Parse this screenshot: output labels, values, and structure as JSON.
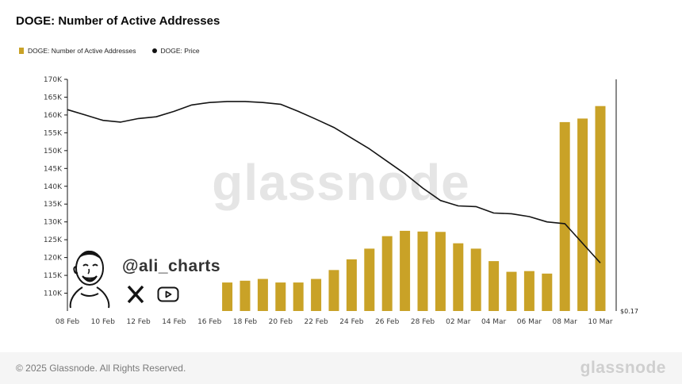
{
  "title": "DOGE: Number of Active Addresses",
  "legend": [
    {
      "label": "DOGE: Number of Active Addresses",
      "color": "#C9A227",
      "marker": "bar"
    },
    {
      "label": "DOGE: Price",
      "color": "#111111",
      "marker": "dot"
    }
  ],
  "watermark": "glassnode",
  "annotation": {
    "handle": "@ali_charts",
    "icons": [
      "x-logo-icon",
      "youtube-icon"
    ]
  },
  "price_label": "$0.17",
  "footer": {
    "copyright": "© 2025 Glassnode. All Rights Reserved.",
    "brand": "glassnode"
  },
  "colors": {
    "bar": "#C9A227",
    "line": "#141414",
    "axis": "#141414",
    "tick_text": "#3a3a3a",
    "watermark": "#e5e5e5",
    "footer_bg": "#f5f5f5"
  },
  "chart_data": {
    "type": "bar+line",
    "title": "DOGE: Number of Active Addresses",
    "ylabel": "Active Addresses",
    "ylim": [
      105000,
      170000
    ],
    "yticks": [
      110000,
      115000,
      120000,
      125000,
      130000,
      135000,
      140000,
      145000,
      150000,
      155000,
      160000,
      165000,
      170000
    ],
    "xticks": [
      "08 Feb",
      "10 Feb",
      "12 Feb",
      "14 Feb",
      "16 Feb",
      "18 Feb",
      "20 Feb",
      "22 Feb",
      "24 Feb",
      "26 Feb",
      "28 Feb",
      "02 Mar",
      "04 Mar",
      "06 Mar",
      "08 Mar",
      "10 Mar"
    ],
    "xtick_day_step": 2,
    "days_max": 30,
    "grid": false,
    "legend_position": "top-left",
    "series": [
      {
        "name": "DOGE: Number of Active Addresses",
        "kind": "bar",
        "x_index": [
          9,
          10,
          11,
          12,
          13,
          14,
          15,
          16,
          17,
          18,
          19,
          20,
          21,
          22,
          23,
          24,
          25,
          26,
          27,
          28,
          29,
          30
        ],
        "values": [
          113000,
          113500,
          114000,
          113000,
          113000,
          114000,
          116500,
          119500,
          122500,
          126000,
          127500,
          127300,
          127200,
          124000,
          122500,
          119000,
          116000,
          116200,
          115500,
          158000,
          159000,
          162500
        ]
      },
      {
        "name": "DOGE: Price",
        "kind": "line",
        "x_index": [
          0,
          1,
          2,
          3,
          4,
          5,
          6,
          7,
          8,
          9,
          10,
          11,
          12,
          13,
          14,
          15,
          16,
          17,
          18,
          19,
          20,
          21,
          22,
          23,
          24,
          25,
          26,
          27,
          28,
          29,
          30
        ],
        "values": [
          161500,
          160000,
          158500,
          158000,
          159000,
          159500,
          161000,
          162800,
          163500,
          163800,
          163800,
          163500,
          163000,
          161000,
          158800,
          156500,
          153500,
          150500,
          147000,
          143500,
          139500,
          136000,
          134500,
          134300,
          132500,
          132300,
          131500,
          130000,
          129500,
          124000,
          118500
        ],
        "last_price_label": "$0.17"
      }
    ]
  }
}
